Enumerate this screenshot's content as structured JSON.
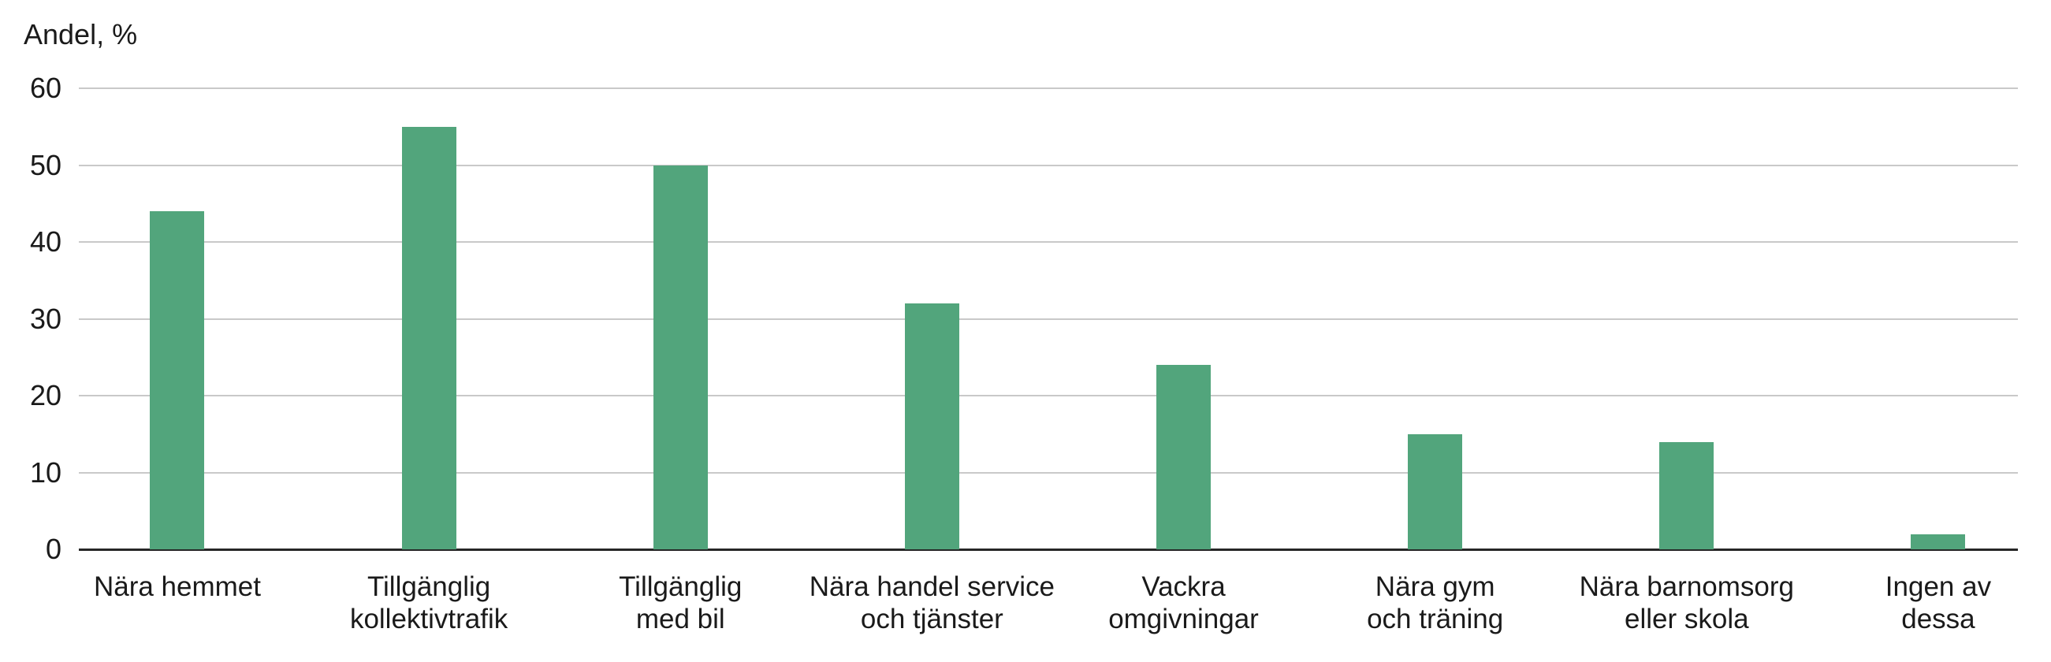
{
  "chart_data": {
    "type": "bar",
    "title": "",
    "ylabel": "Andel, %",
    "xlabel": "",
    "categories": [
      "Nära hemmet",
      "Tillgänglig kollektivtrafik",
      "Tillgänglig med bil",
      "Nära handel service och tjänster",
      "Vackra omgivningar",
      "Nära gym och träning",
      "Nära barnomsorg eller skola",
      "Ingen av dessa"
    ],
    "categories_wrapped": [
      [
        "Nära hemmet"
      ],
      [
        "Tillgänglig",
        "kollektivtrafik"
      ],
      [
        "Tillgänglig",
        "med bil"
      ],
      [
        "Nära handel service",
        "och tjänster"
      ],
      [
        "Vackra",
        "omgivningar"
      ],
      [
        "Nära gym",
        "och träning"
      ],
      [
        "Nära barnomsorg",
        "eller skola"
      ],
      [
        "Ingen av",
        "dessa"
      ]
    ],
    "values": [
      44,
      55,
      50,
      32,
      24,
      15,
      14,
      2
    ],
    "ylim": [
      0,
      60
    ],
    "yticks": [
      0,
      10,
      20,
      30,
      40,
      50,
      60
    ],
    "grid": true,
    "legend": "none",
    "bar_color": "#52a57c",
    "gridline_color": "#c9c9c9",
    "axis_color": "#262626",
    "text_color": "#1a1a1a"
  }
}
